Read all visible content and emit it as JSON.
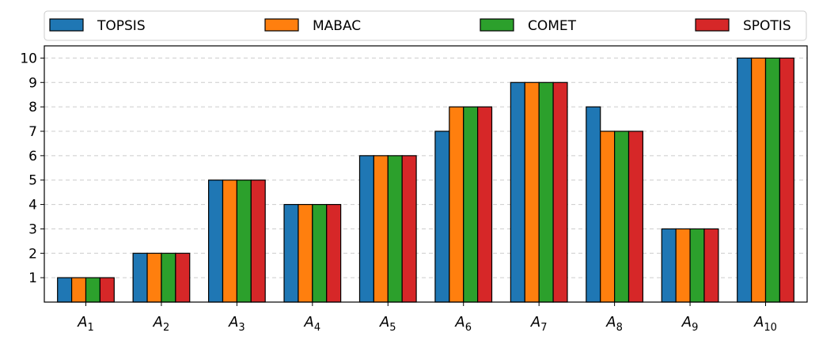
{
  "chart_data": {
    "type": "bar",
    "title": "",
    "xlabel": "",
    "ylabel": "",
    "categories": [
      {
        "base": "A",
        "sub": "1"
      },
      {
        "base": "A",
        "sub": "2"
      },
      {
        "base": "A",
        "sub": "3"
      },
      {
        "base": "A",
        "sub": "4"
      },
      {
        "base": "A",
        "sub": "5"
      },
      {
        "base": "A",
        "sub": "6"
      },
      {
        "base": "A",
        "sub": "7"
      },
      {
        "base": "A",
        "sub": "8"
      },
      {
        "base": "A",
        "sub": "9"
      },
      {
        "base": "A",
        "sub": "10"
      }
    ],
    "series": [
      {
        "name": "TOPSIS",
        "color": "#1f77b4",
        "values": [
          1,
          2,
          5,
          4,
          6,
          7,
          9,
          8,
          3,
          10
        ]
      },
      {
        "name": "MABAC",
        "color": "#ff7f0e",
        "values": [
          1,
          2,
          5,
          4,
          6,
          8,
          9,
          7,
          3,
          10
        ]
      },
      {
        "name": "COMET",
        "color": "#2ca02c",
        "values": [
          1,
          2,
          5,
          4,
          6,
          8,
          9,
          7,
          3,
          10
        ]
      },
      {
        "name": "SPOTIS",
        "color": "#d62728",
        "values": [
          1,
          2,
          5,
          4,
          6,
          8,
          9,
          7,
          3,
          10
        ]
      }
    ],
    "ylim": [
      0,
      10.5
    ],
    "yticks": [
      1,
      2,
      3,
      4,
      5,
      6,
      7,
      8,
      9,
      10
    ],
    "grid": "horizontal-dashed",
    "legend_position": "top"
  }
}
